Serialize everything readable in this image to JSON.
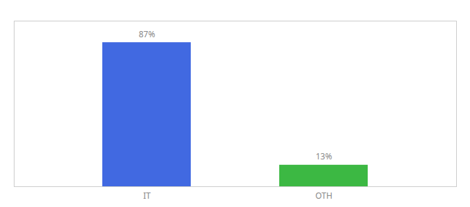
{
  "chart_data": {
    "type": "bar",
    "categories": [
      "IT",
      "OTH"
    ],
    "values": [
      87,
      13
    ],
    "value_labels": [
      "87%",
      "13%"
    ],
    "colors": [
      "#4169e1",
      "#3cb843"
    ],
    "ylim": [
      0,
      100
    ],
    "data_labels": true,
    "tick_labels": "x",
    "grid": false
  }
}
